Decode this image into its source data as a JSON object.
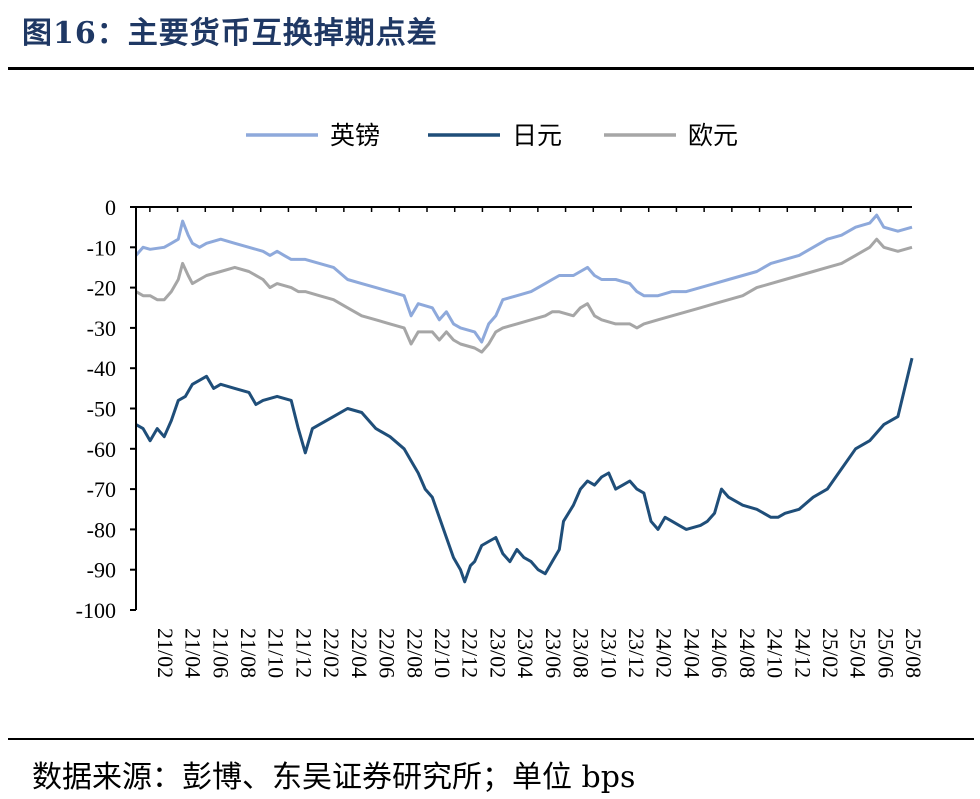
{
  "title": "图16：主要货币互换掉期点差",
  "source": "数据来源：彭博、东吴证券研究所；单位 bps",
  "chart_data": {
    "type": "line",
    "ylim": [
      -100,
      0
    ],
    "yticks": [
      0,
      -10,
      -20,
      -30,
      -40,
      -50,
      -60,
      -70,
      -80,
      -90,
      -100
    ],
    "xlim": [
      0,
      55
    ],
    "xtick_labels": [
      "21/02",
      "21/04",
      "21/06",
      "21/08",
      "21/10",
      "21/12",
      "22/02",
      "22/04",
      "22/06",
      "22/08",
      "22/10",
      "22/12",
      "23/02",
      "23/04",
      "23/06",
      "23/08",
      "23/10",
      "23/12",
      "24/02",
      "24/04",
      "24/06",
      "24/08",
      "24/10",
      "24/12",
      "25/02",
      "25/04",
      "25/06",
      "25/08"
    ],
    "legend_position": "top",
    "series": [
      {
        "name": "英镑",
        "color": "#8EA9DB",
        "points": [
          [
            0,
            -12
          ],
          [
            0.5,
            -10
          ],
          [
            1,
            -10.5
          ],
          [
            2,
            -10
          ],
          [
            2.5,
            -9
          ],
          [
            3,
            -8
          ],
          [
            3.3,
            -3.5
          ],
          [
            3.7,
            -7
          ],
          [
            4,
            -9
          ],
          [
            4.5,
            -10
          ],
          [
            5,
            -9
          ],
          [
            6,
            -8
          ],
          [
            7,
            -9
          ],
          [
            8,
            -10
          ],
          [
            9,
            -11
          ],
          [
            9.5,
            -12
          ],
          [
            10,
            -11
          ],
          [
            10.5,
            -12
          ],
          [
            11,
            -13
          ],
          [
            12,
            -13
          ],
          [
            13,
            -14
          ],
          [
            14,
            -15
          ],
          [
            15,
            -18
          ],
          [
            16,
            -19
          ],
          [
            17,
            -20
          ],
          [
            18,
            -21
          ],
          [
            19,
            -22
          ],
          [
            19.5,
            -27
          ],
          [
            20,
            -24
          ],
          [
            21,
            -25
          ],
          [
            21.5,
            -28
          ],
          [
            22,
            -26
          ],
          [
            22.5,
            -29
          ],
          [
            23,
            -30
          ],
          [
            24,
            -31
          ],
          [
            24.5,
            -33.5
          ],
          [
            25,
            -29
          ],
          [
            25.5,
            -27
          ],
          [
            26,
            -23
          ],
          [
            27,
            -22
          ],
          [
            28,
            -21
          ],
          [
            29,
            -19
          ],
          [
            29.5,
            -18
          ],
          [
            30,
            -17
          ],
          [
            31,
            -17
          ],
          [
            31.5,
            -16
          ],
          [
            32,
            -15
          ],
          [
            32.5,
            -17
          ],
          [
            33,
            -18
          ],
          [
            34,
            -18
          ],
          [
            35,
            -19
          ],
          [
            35.5,
            -21
          ],
          [
            36,
            -22
          ],
          [
            37,
            -22
          ],
          [
            38,
            -21
          ],
          [
            39,
            -21
          ],
          [
            40,
            -20
          ],
          [
            41,
            -19
          ],
          [
            42,
            -18
          ],
          [
            43,
            -17
          ],
          [
            44,
            -16
          ],
          [
            45,
            -14
          ],
          [
            46,
            -13
          ],
          [
            47,
            -12
          ],
          [
            48,
            -10
          ],
          [
            49,
            -8
          ],
          [
            50,
            -7
          ],
          [
            51,
            -5
          ],
          [
            52,
            -4
          ],
          [
            52.5,
            -2
          ],
          [
            53,
            -5
          ],
          [
            54,
            -6
          ],
          [
            55,
            -5
          ]
        ]
      },
      {
        "name": "日元",
        "color": "#1F4E79",
        "points": [
          [
            0,
            -54
          ],
          [
            0.5,
            -55
          ],
          [
            1,
            -58
          ],
          [
            1.5,
            -55
          ],
          [
            2,
            -57
          ],
          [
            2.5,
            -53
          ],
          [
            3,
            -48
          ],
          [
            3.5,
            -47
          ],
          [
            4,
            -44
          ],
          [
            4.5,
            -43
          ],
          [
            5,
            -42
          ],
          [
            5.5,
            -45
          ],
          [
            6,
            -44
          ],
          [
            7,
            -45
          ],
          [
            8,
            -46
          ],
          [
            8.5,
            -49
          ],
          [
            9,
            -48
          ],
          [
            10,
            -47
          ],
          [
            11,
            -48
          ],
          [
            11.5,
            -55
          ],
          [
            12,
            -61
          ],
          [
            12.5,
            -55
          ],
          [
            13,
            -54
          ],
          [
            14,
            -52
          ],
          [
            15,
            -50
          ],
          [
            16,
            -51
          ],
          [
            17,
            -55
          ],
          [
            18,
            -57
          ],
          [
            19,
            -60
          ],
          [
            19.5,
            -63
          ],
          [
            20,
            -66
          ],
          [
            20.5,
            -70
          ],
          [
            21,
            -72
          ],
          [
            21.5,
            -77
          ],
          [
            22,
            -82
          ],
          [
            22.5,
            -87
          ],
          [
            23,
            -90
          ],
          [
            23.3,
            -93
          ],
          [
            23.7,
            -89
          ],
          [
            24,
            -88
          ],
          [
            24.5,
            -84
          ],
          [
            25,
            -83
          ],
          [
            25.5,
            -82
          ],
          [
            26,
            -86
          ],
          [
            26.5,
            -88
          ],
          [
            27,
            -85
          ],
          [
            27.5,
            -87
          ],
          [
            28,
            -88
          ],
          [
            28.5,
            -90
          ],
          [
            29,
            -91
          ],
          [
            29.5,
            -88
          ],
          [
            30,
            -85
          ],
          [
            30.3,
            -78
          ],
          [
            31,
            -74
          ],
          [
            31.5,
            -70
          ],
          [
            32,
            -68
          ],
          [
            32.5,
            -69
          ],
          [
            33,
            -67
          ],
          [
            33.5,
            -66
          ],
          [
            34,
            -70
          ],
          [
            34.5,
            -69
          ],
          [
            35,
            -68
          ],
          [
            35.5,
            -70
          ],
          [
            36,
            -71
          ],
          [
            36.5,
            -78
          ],
          [
            37,
            -80
          ],
          [
            37.5,
            -77
          ],
          [
            38,
            -78
          ],
          [
            38.5,
            -79
          ],
          [
            39,
            -80
          ],
          [
            40,
            -79
          ],
          [
            40.5,
            -78
          ],
          [
            41,
            -76
          ],
          [
            41.5,
            -70
          ],
          [
            42,
            -72
          ],
          [
            43,
            -74
          ],
          [
            44,
            -75
          ],
          [
            45,
            -77
          ],
          [
            45.5,
            -77
          ],
          [
            46,
            -76
          ],
          [
            47,
            -75
          ],
          [
            48,
            -72
          ],
          [
            49,
            -70
          ],
          [
            50,
            -65
          ],
          [
            51,
            -60
          ],
          [
            52,
            -58
          ],
          [
            53,
            -54
          ],
          [
            54,
            -52
          ],
          [
            55,
            -37.5
          ]
        ]
      },
      {
        "name": "欧元",
        "color": "#A6A6A6",
        "points": [
          [
            0,
            -21
          ],
          [
            0.5,
            -22
          ],
          [
            1,
            -22
          ],
          [
            1.5,
            -23
          ],
          [
            2,
            -23
          ],
          [
            2.5,
            -21
          ],
          [
            3,
            -18
          ],
          [
            3.3,
            -14
          ],
          [
            3.7,
            -17
          ],
          [
            4,
            -19
          ],
          [
            4.5,
            -18
          ],
          [
            5,
            -17
          ],
          [
            6,
            -16
          ],
          [
            7,
            -15
          ],
          [
            8,
            -16
          ],
          [
            9,
            -18
          ],
          [
            9.5,
            -20
          ],
          [
            10,
            -19
          ],
          [
            11,
            -20
          ],
          [
            11.5,
            -21
          ],
          [
            12,
            -21
          ],
          [
            13,
            -22
          ],
          [
            14,
            -23
          ],
          [
            15,
            -25
          ],
          [
            16,
            -27
          ],
          [
            17,
            -28
          ],
          [
            18,
            -29
          ],
          [
            19,
            -30
          ],
          [
            19.5,
            -34
          ],
          [
            20,
            -31
          ],
          [
            21,
            -31
          ],
          [
            21.5,
            -33
          ],
          [
            22,
            -31
          ],
          [
            22.5,
            -33
          ],
          [
            23,
            -34
          ],
          [
            24,
            -35
          ],
          [
            24.5,
            -36
          ],
          [
            25,
            -34
          ],
          [
            25.5,
            -31
          ],
          [
            26,
            -30
          ],
          [
            27,
            -29
          ],
          [
            28,
            -28
          ],
          [
            29,
            -27
          ],
          [
            29.5,
            -26
          ],
          [
            30,
            -26
          ],
          [
            31,
            -27
          ],
          [
            31.5,
            -25
          ],
          [
            32,
            -24
          ],
          [
            32.5,
            -27
          ],
          [
            33,
            -28
          ],
          [
            34,
            -29
          ],
          [
            35,
            -29
          ],
          [
            35.5,
            -30
          ],
          [
            36,
            -29
          ],
          [
            37,
            -28
          ],
          [
            38,
            -27
          ],
          [
            39,
            -26
          ],
          [
            40,
            -25
          ],
          [
            41,
            -24
          ],
          [
            42,
            -23
          ],
          [
            43,
            -22
          ],
          [
            44,
            -20
          ],
          [
            45,
            -19
          ],
          [
            46,
            -18
          ],
          [
            47,
            -17
          ],
          [
            48,
            -16
          ],
          [
            49,
            -15
          ],
          [
            50,
            -14
          ],
          [
            51,
            -12
          ],
          [
            52,
            -10
          ],
          [
            52.5,
            -8
          ],
          [
            53,
            -10
          ],
          [
            54,
            -11
          ],
          [
            55,
            -10
          ]
        ]
      }
    ]
  }
}
